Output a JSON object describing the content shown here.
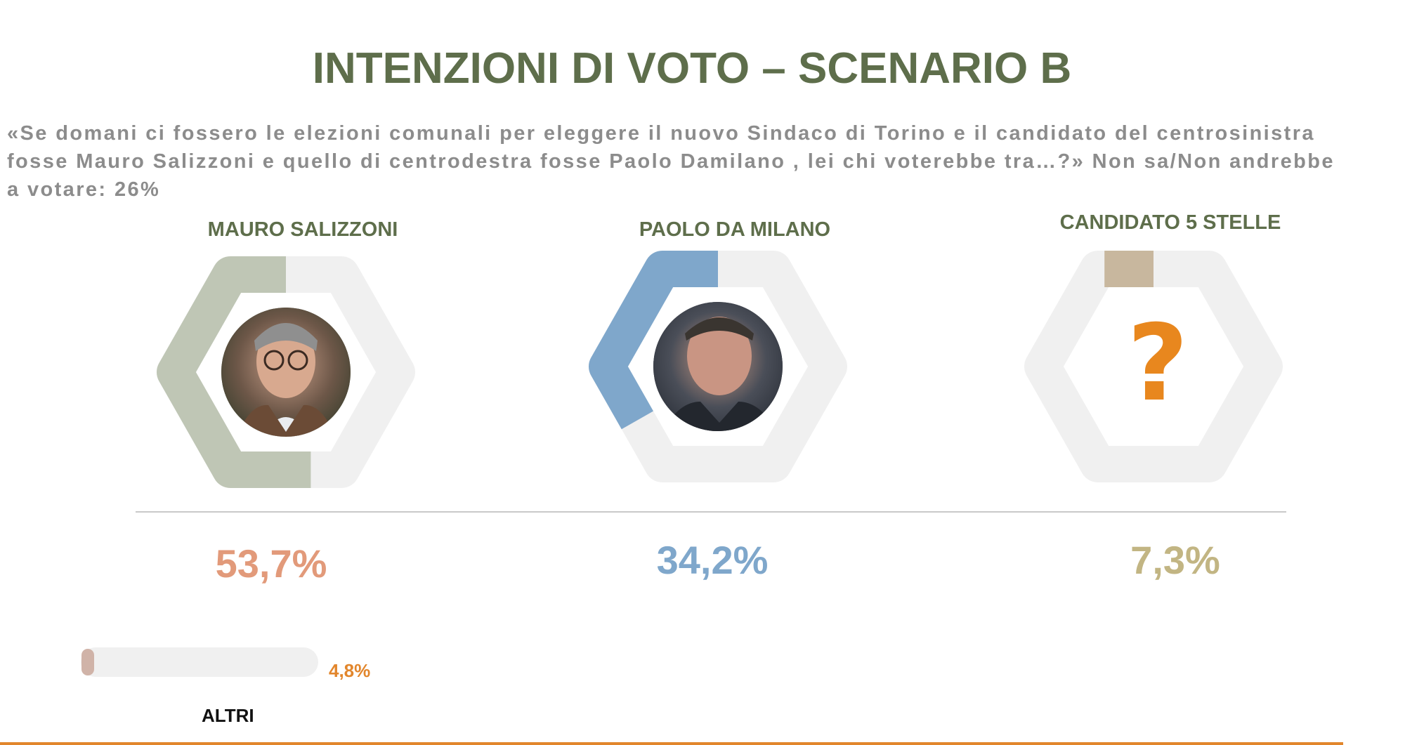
{
  "title": "INTENZIONI DI VOTO – SCENARIO B",
  "question": " «Se domani ci fossero le elezioni comunali per eleggere il nuovo Sindaco di Torino e il candidato del centrosinistra\nfosse Mauro Salizzoni e quello di centrodestra fosse Paolo Damilano , lei chi voterebbe tra…?» Non sa/Non andrebbe\na votare: 26%",
  "colors": {
    "title": "#5e6e4b",
    "track": "#f0f0f0",
    "salizzoni_ring": "#bfc6b5",
    "salizzoni_pct": "#e29a7a",
    "damilano_ring": "#7fa7cb",
    "damilano_pct": "#7fa7cb",
    "m5s_ring": "#c8b79e",
    "m5s_pct": "#c2b583",
    "altri_fill": "#d0b3a8",
    "altri_pct": "#e2862c",
    "question_mark": "#e8871e"
  },
  "chart_data": {
    "type": "donut",
    "series": [
      {
        "name": "MAURO SALIZZONI",
        "value": 53.7,
        "label": "53,7%",
        "picture": "candidate-photo"
      },
      {
        "name": "PAOLO DA MILANO",
        "value": 34.2,
        "label": "34,2%",
        "picture": "candidate-photo"
      },
      {
        "name": "CANDIDATO 5 STELLE",
        "value": 7.3,
        "label": "7,3%",
        "picture": "question-mark-icon"
      }
    ],
    "others": {
      "name": "ALTRI",
      "value": 4.8,
      "label": "4,8%"
    }
  },
  "m5s_symbol": "?"
}
